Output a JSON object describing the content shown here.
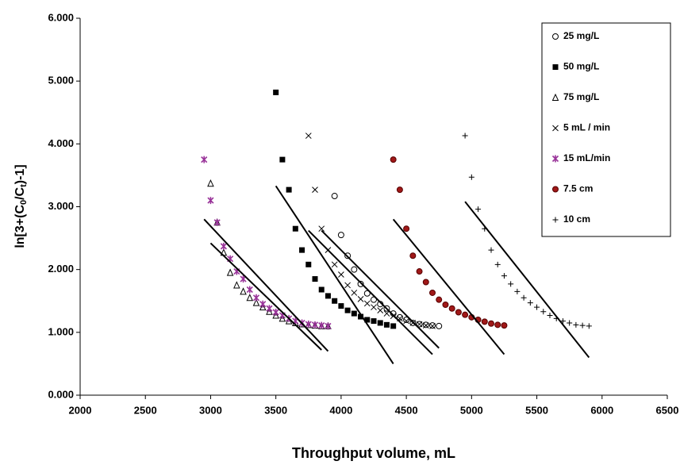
{
  "chart_data": {
    "type": "scatter",
    "x_label": "Throughput volume, mL",
    "y_label": [
      "ln[3+(C",
      "0",
      "/C",
      "t",
      ")-1]"
    ],
    "xlim": [
      2000,
      6500
    ],
    "xticks": [
      2000,
      2500,
      3000,
      3500,
      4000,
      4500,
      5000,
      5500,
      6000,
      6500
    ],
    "ylim": [
      0,
      6
    ],
    "yticks": [
      {
        "value": 0,
        "label": "0.000"
      },
      {
        "value": 1,
        "label": "1.000"
      },
      {
        "value": 2,
        "label": "2.000"
      },
      {
        "value": 3,
        "label": "3.000"
      },
      {
        "value": 4,
        "label": "4.000"
      },
      {
        "value": 5,
        "label": "5.000"
      },
      {
        "value": 6,
        "label": "6.000"
      }
    ],
    "series": [
      {
        "name": "25 mg/L",
        "marker": "open-circle",
        "color": "#000000",
        "x": [
          3950,
          4000,
          4050,
          4100,
          4150,
          4200,
          4250,
          4300,
          4350,
          4400,
          4450,
          4500,
          4550,
          4600,
          4650,
          4700,
          4750
        ],
        "values": [
          3.17,
          2.55,
          2.22,
          2.0,
          1.77,
          1.62,
          1.52,
          1.45,
          1.38,
          1.3,
          1.24,
          1.2,
          1.15,
          1.13,
          1.12,
          1.11,
          1.1
        ]
      },
      {
        "name": "50 mg/L",
        "marker": "square",
        "color": "#000000",
        "x": [
          3500,
          3550,
          3600,
          3650,
          3700,
          3750,
          3800,
          3850,
          3900,
          3950,
          4000,
          4050,
          4100,
          4150,
          4200,
          4250,
          4300,
          4350,
          4400
        ],
        "values": [
          4.82,
          3.75,
          3.27,
          2.65,
          2.31,
          2.08,
          1.85,
          1.68,
          1.58,
          1.5,
          1.42,
          1.35,
          1.3,
          1.25,
          1.2,
          1.18,
          1.15,
          1.12,
          1.1
        ]
      },
      {
        "name": "75 mg/L",
        "marker": "open-triangle",
        "color": "#000000",
        "x": [
          3000,
          3050,
          3100,
          3150,
          3200,
          3250,
          3300,
          3350,
          3400,
          3450,
          3500,
          3550,
          3600,
          3650,
          3700,
          3750,
          3800,
          3850,
          3900
        ],
        "values": [
          3.37,
          2.75,
          2.27,
          1.95,
          1.75,
          1.65,
          1.55,
          1.47,
          1.4,
          1.33,
          1.27,
          1.22,
          1.18,
          1.15,
          1.13,
          1.12,
          1.11,
          1.1,
          1.1
        ]
      },
      {
        "name": "5 mL / min",
        "marker": "cross",
        "color": "#000000",
        "x": [
          3750,
          3800,
          3850,
          3900,
          3950,
          4000,
          4050,
          4100,
          4150,
          4200,
          4250,
          4300,
          4350,
          4400,
          4450,
          4500,
          4550,
          4600,
          4650,
          4700
        ],
        "values": [
          4.13,
          3.27,
          2.65,
          2.31,
          2.08,
          1.92,
          1.75,
          1.63,
          1.53,
          1.46,
          1.4,
          1.35,
          1.3,
          1.26,
          1.22,
          1.18,
          1.15,
          1.13,
          1.11,
          1.1
        ]
      },
      {
        "name": "15 mL/min",
        "marker": "star",
        "color": "#993399",
        "x": [
          2950,
          3000,
          3050,
          3100,
          3150,
          3200,
          3250,
          3300,
          3350,
          3400,
          3450,
          3500,
          3550,
          3600,
          3650,
          3700,
          3750,
          3800,
          3850,
          3900
        ],
        "values": [
          3.75,
          3.1,
          2.75,
          2.37,
          2.17,
          1.97,
          1.85,
          1.68,
          1.55,
          1.45,
          1.38,
          1.32,
          1.27,
          1.22,
          1.18,
          1.15,
          1.13,
          1.12,
          1.11,
          1.1
        ]
      },
      {
        "name": "7.5 cm",
        "marker": "dot",
        "color": "#a01818",
        "x": [
          4400,
          4450,
          4500,
          4550,
          4600,
          4650,
          4700,
          4750,
          4800,
          4850,
          4900,
          4950,
          5000,
          5050,
          5100,
          5150,
          5200,
          5250
        ],
        "values": [
          3.75,
          3.27,
          2.65,
          2.22,
          1.97,
          1.8,
          1.63,
          1.52,
          1.44,
          1.38,
          1.32,
          1.28,
          1.24,
          1.2,
          1.17,
          1.14,
          1.12,
          1.11
        ]
      },
      {
        "name": "10 cm",
        "marker": "plus",
        "color": "#000000",
        "x": [
          4950,
          5000,
          5050,
          5100,
          5150,
          5200,
          5250,
          5300,
          5350,
          5400,
          5450,
          5500,
          5550,
          5600,
          5650,
          5700,
          5750,
          5800,
          5850,
          5900
        ],
        "values": [
          4.13,
          3.47,
          2.96,
          2.65,
          2.31,
          2.08,
          1.9,
          1.77,
          1.65,
          1.55,
          1.47,
          1.4,
          1.33,
          1.27,
          1.22,
          1.18,
          1.15,
          1.12,
          1.11,
          1.1
        ]
      }
    ],
    "trend_lines": [
      {
        "x": [
          2950,
          3900
        ],
        "values": [
          2.8,
          0.7
        ]
      },
      {
        "x": [
          3000,
          3850
        ],
        "values": [
          2.42,
          0.72
        ]
      },
      {
        "x": [
          3500,
          4400
        ],
        "values": [
          3.33,
          0.5
        ]
      },
      {
        "x": [
          3750,
          4700
        ],
        "values": [
          2.62,
          0.65
        ]
      },
      {
        "x": [
          3850,
          4750
        ],
        "values": [
          2.62,
          0.75
        ]
      },
      {
        "x": [
          4400,
          5250
        ],
        "values": [
          2.8,
          0.65
        ]
      },
      {
        "x": [
          4950,
          5900
        ],
        "values": [
          3.08,
          0.6
        ]
      }
    ]
  }
}
